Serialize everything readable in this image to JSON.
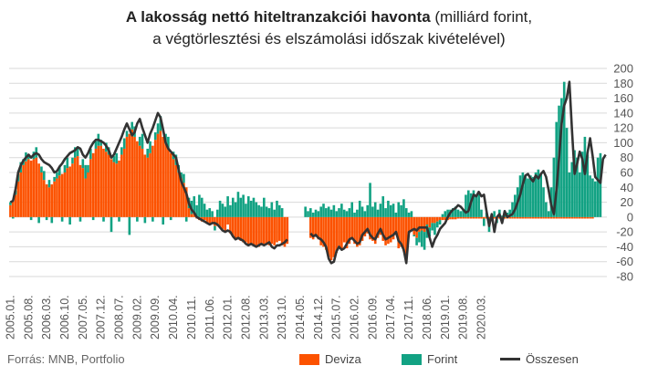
{
  "title": {
    "bold": "A lakosság nettó hiteltranzakciói havonta",
    "rest1": " (milliárd forint,",
    "line2": "a végtörlesztési és elszámolási időszak kivételével)"
  },
  "source": "Forrás: MNB, Portfolio",
  "colors": {
    "deviza": "#fc5200",
    "forint": "#12a283",
    "total": "#333333",
    "grid": "#d9d9d9"
  },
  "chart_data": {
    "type": "bar",
    "stacked": true,
    "x_start": "2005-01",
    "x_ticks": [
      "2005.01.",
      "2005.08.",
      "2006.03.",
      "2006.10.",
      "2007.05.",
      "2007.12.",
      "2008.07.",
      "2009.02.",
      "2009.09.",
      "2010.04.",
      "2010.11.",
      "2011.06.",
      "2012.01.",
      "2012.08.",
      "2013.03.",
      "2013.10.",
      "2014.05.",
      "2014.12.",
      "2015.07.",
      "2016.02.",
      "2016.09.",
      "2017.04.",
      "2017.11.",
      "2018.06.",
      "2019.01.",
      "2019.08.",
      "2020.03."
    ],
    "ylim": [
      -80,
      200
    ],
    "y_ticks": [
      200,
      180,
      160,
      140,
      120,
      100,
      80,
      60,
      40,
      20,
      0,
      -20,
      -40,
      -60,
      -80
    ],
    "legend": [
      "Deviza",
      "Forint",
      "Összesen"
    ],
    "legend_position": "bottom",
    "series_deviza": [
      16,
      22,
      30,
      48,
      60,
      70,
      75,
      78,
      76,
      78,
      80,
      72,
      60,
      50,
      44,
      40,
      44,
      48,
      52,
      56,
      58,
      60,
      66,
      68,
      72,
      80,
      82,
      70,
      66,
      52,
      60,
      78,
      86,
      92,
      96,
      96,
      92,
      88,
      84,
      78,
      74,
      72,
      76,
      84,
      92,
      108,
      112,
      118,
      108,
      102,
      96,
      92,
      84,
      80,
      86,
      96,
      104,
      112,
      116,
      108,
      100,
      92,
      86,
      78,
      70,
      60,
      52,
      46,
      40,
      12,
      4,
      6,
      -2,
      -4,
      -6,
      -4,
      -8,
      -10,
      -8,
      -12,
      -12,
      -14,
      -16,
      -18,
      -10,
      -22,
      -26,
      -30,
      -30,
      -32,
      -34,
      -34,
      -36,
      -36,
      -38,
      -38,
      -40,
      -38,
      -36,
      -36,
      -38,
      -36,
      -38,
      -34,
      -32,
      -38,
      -40,
      -36,
      0,
      0,
      0,
      0,
      0,
      0,
      0,
      0,
      -28,
      -30,
      -26,
      -30,
      -38,
      -40,
      -44,
      -54,
      -58,
      -54,
      -48,
      -42,
      -44,
      -34,
      -42,
      -36,
      -30,
      -36,
      -40,
      -38,
      -32,
      -26,
      -22,
      -30,
      -32,
      -36,
      -28,
      -24,
      -32,
      -38,
      -36,
      -34,
      -30,
      -24,
      -42,
      -40,
      -46,
      -58,
      -22,
      -18,
      -24,
      -28,
      -20,
      -18,
      -20,
      -10,
      -14,
      -8,
      -8,
      -6,
      -4,
      -4,
      -4,
      -4,
      -3,
      -3,
      -3,
      -2,
      -2,
      -2,
      -2,
      -2,
      -2,
      -2,
      -2,
      -2,
      -2,
      -2,
      -2,
      -2,
      -2,
      -2,
      -2,
      -2,
      -2,
      -2,
      -2,
      -2,
      -2,
      -2,
      -2,
      -2,
      -2,
      -2,
      -2,
      -2,
      -2,
      -2,
      -2,
      -2,
      -2,
      -2,
      -2,
      -2,
      -2,
      -2,
      -2,
      -2,
      -2,
      -2,
      -2,
      -2,
      -2,
      -2,
      -2,
      -2,
      -2,
      -2,
      -2,
      -2
    ],
    "series_forint": [
      4,
      -2,
      6,
      10,
      14,
      8,
      12,
      6,
      -4,
      10,
      14,
      -8,
      8,
      12,
      -4,
      10,
      -8,
      6,
      8,
      12,
      -6,
      10,
      14,
      -10,
      8,
      14,
      10,
      -6,
      12,
      18,
      10,
      14,
      -4,
      10,
      16,
      8,
      -6,
      12,
      10,
      -20,
      8,
      14,
      -6,
      10,
      14,
      8,
      -24,
      10,
      14,
      -6,
      12,
      20,
      -8,
      12,
      16,
      -6,
      10,
      14,
      20,
      -10,
      12,
      16,
      -4,
      10,
      14,
      10,
      8,
      12,
      -6,
      14,
      18,
      22,
      16,
      30,
      26,
      18,
      10,
      12,
      8,
      -6,
      10,
      22,
      18,
      14,
      28,
      16,
      26,
      20,
      34,
      26,
      30,
      18,
      28,
      22,
      26,
      20,
      16,
      14,
      26,
      14,
      12,
      20,
      10,
      22,
      16,
      12,
      0,
      0,
      0,
      0,
      0,
      0,
      0,
      0,
      14,
      8,
      12,
      6,
      10,
      8,
      14,
      18,
      12,
      14,
      10,
      16,
      8,
      12,
      18,
      10,
      8,
      12,
      20,
      6,
      10,
      22,
      14,
      8,
      16,
      46,
      14,
      20,
      10,
      18,
      28,
      12,
      22,
      16,
      18,
      6,
      20,
      16,
      24,
      12,
      6,
      8,
      -2,
      -10,
      -14,
      -22,
      -24,
      -18,
      -12,
      -10,
      -16,
      -8,
      -6,
      4,
      8,
      10,
      10,
      12,
      14,
      10,
      8,
      10,
      30,
      36,
      32,
      36,
      30,
      34,
      10,
      -10,
      6,
      -18,
      4,
      8,
      -6,
      10,
      2,
      4,
      6,
      10,
      20,
      30,
      40,
      56,
      60,
      56,
      52,
      56,
      54,
      60,
      64,
      58,
      40,
      20,
      8,
      40,
      80,
      128,
      150,
      160,
      182,
      120,
      60,
      74,
      90,
      80,
      60,
      88,
      108,
      84,
      56,
      52,
      48,
      80,
      86
    ],
    "series_total": [
      20,
      22,
      38,
      60,
      70,
      76,
      80,
      84,
      80,
      84,
      86,
      84,
      78,
      74,
      72,
      70,
      66,
      60,
      62,
      68,
      72,
      78,
      82,
      86,
      88,
      90,
      94,
      92,
      84,
      80,
      86,
      94,
      100,
      104,
      104,
      102,
      100,
      96,
      90,
      80,
      84,
      92,
      100,
      108,
      118,
      126,
      118,
      110,
      114,
      126,
      132,
      120,
      110,
      100,
      112,
      120,
      130,
      140,
      134,
      118,
      100,
      92,
      88,
      84,
      80,
      64,
      48,
      40,
      32,
      18,
      10,
      6,
      0,
      -2,
      -4,
      -6,
      -8,
      -10,
      -8,
      -8,
      -10,
      -14,
      -18,
      -20,
      -18,
      -20,
      -26,
      -30,
      -28,
      -30,
      -32,
      -36,
      -38,
      -36,
      -38,
      -40,
      -38,
      -36,
      -38,
      -36,
      -34,
      -40,
      -42,
      -38,
      -38,
      -36,
      -34,
      -30,
      null,
      null,
      null,
      null,
      null,
      null,
      null,
      null,
      -22,
      -26,
      -24,
      -28,
      -30,
      -34,
      -40,
      -56,
      -62,
      -60,
      -46,
      -40,
      -44,
      -42,
      -36,
      -30,
      -28,
      -32,
      -36,
      -34,
      -24,
      -20,
      -16,
      -24,
      -28,
      -30,
      -22,
      -16,
      -24,
      -30,
      -28,
      -26,
      -24,
      -20,
      -32,
      -36,
      -44,
      -62,
      -20,
      -18,
      -16,
      -18,
      -14,
      -14,
      -14,
      -14,
      -28,
      -40,
      -30,
      -24,
      -16,
      -12,
      -8,
      0,
      6,
      10,
      12,
      16,
      14,
      10,
      6,
      8,
      20,
      30,
      28,
      34,
      28,
      30,
      8,
      -12,
      4,
      -20,
      0,
      4,
      -8,
      8,
      0,
      2,
      4,
      10,
      20,
      30,
      44,
      56,
      58,
      52,
      48,
      56,
      52,
      58,
      62,
      54,
      36,
      16,
      4,
      36,
      78,
      126,
      150,
      160,
      182,
      118,
      58,
      72,
      88,
      78,
      58,
      86,
      106,
      82,
      54,
      50,
      46,
      78,
      84
    ]
  }
}
